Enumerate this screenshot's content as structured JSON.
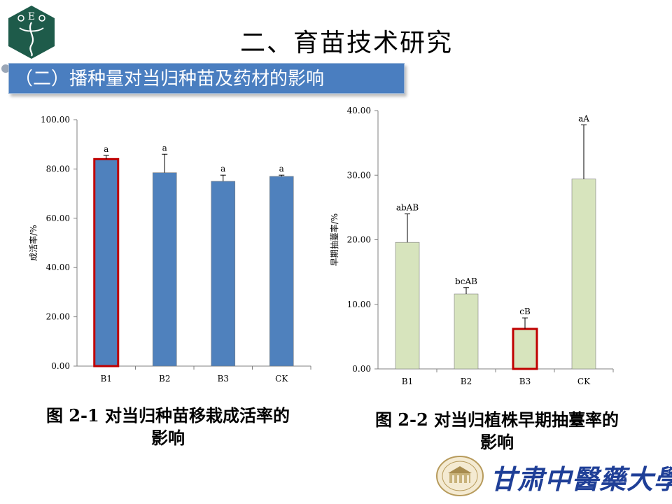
{
  "slide": {
    "title": "二、育苗技术研究",
    "subtitle": "（二）播种量对当归种苗及药材的影响",
    "logo_letters": "E",
    "university_name": "甘肃中醫藥大學"
  },
  "chart_data": [
    {
      "type": "bar",
      "categories": [
        "B1",
        "B2",
        "B3",
        "CK"
      ],
      "values": [
        84.0,
        78.5,
        75.0,
        77.0
      ],
      "errors": [
        1.5,
        7.5,
        2.5,
        0.5
      ],
      "labels": [
        "a",
        "a",
        "a",
        "a"
      ],
      "highlight": [
        true,
        false,
        false,
        false
      ],
      "ylabel": "成活率/%",
      "ylim": [
        0,
        100
      ],
      "yticks": [
        "0.00",
        "20.00",
        "40.00",
        "60.00",
        "80.00",
        "100.00"
      ],
      "colors": {
        "bar": "#4f81bd",
        "highlight": "#c00000"
      },
      "caption": "图 2-1 对当归种苗移栽成活率的影响"
    },
    {
      "type": "bar",
      "categories": [
        "B1",
        "B2",
        "B3",
        "CK"
      ],
      "values": [
        19.6,
        11.6,
        6.2,
        29.4
      ],
      "errors": [
        4.4,
        1.0,
        1.7,
        8.4
      ],
      "labels": [
        "abAB",
        "bcAB",
        "cB",
        "aA"
      ],
      "highlight": [
        false,
        false,
        true,
        false
      ],
      "ylabel": "早期抽薹率/%",
      "ylim": [
        0,
        40
      ],
      "yticks": [
        "0.00",
        "10.00",
        "20.00",
        "30.00",
        "40.00"
      ],
      "colors": {
        "bar": "#d7e4bd",
        "highlight": "#c00000"
      },
      "caption": "图 2-2 对当归植株早期抽薹率的影响"
    }
  ]
}
